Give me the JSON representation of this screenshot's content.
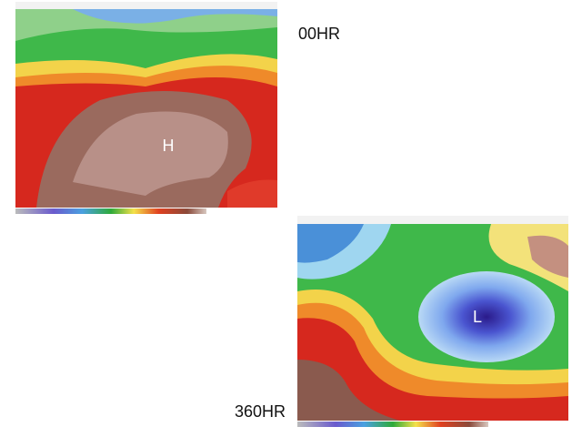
{
  "slide": {
    "maps": [
      {
        "label": "00HR",
        "marker": "H"
      },
      {
        "label": "360HR",
        "marker": "L"
      }
    ]
  }
}
